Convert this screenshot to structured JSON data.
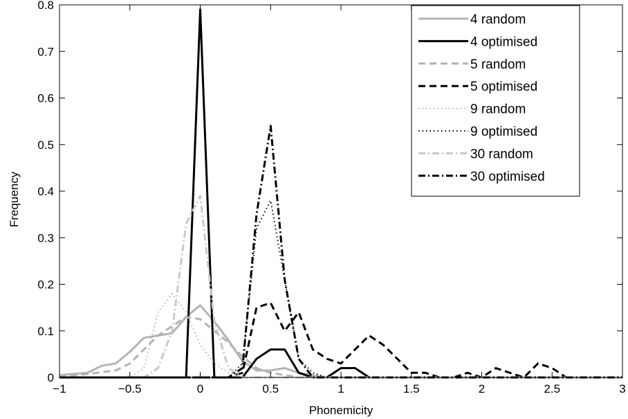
{
  "chart_data": {
    "type": "line",
    "title": "",
    "xlabel": "Phonemicity",
    "ylabel": "Frequency",
    "xlim": [
      -1,
      3
    ],
    "ylim": [
      0,
      0.8
    ],
    "xticks": [
      -1,
      -0.5,
      0,
      0.5,
      1,
      1.5,
      2,
      2.5,
      3
    ],
    "xtick_labels": [
      "−1",
      "−0.5",
      "0",
      "0.5",
      "1",
      "1.5",
      "2",
      "2.5",
      "3"
    ],
    "yticks": [
      0,
      0.1,
      0.2,
      0.3,
      0.4,
      0.5,
      0.6,
      0.7,
      0.8
    ],
    "ytick_labels": [
      "0",
      "0.1",
      "0.2",
      "0.3",
      "0.4",
      "0.5",
      "0.6",
      "0.7",
      "0.8"
    ],
    "grid": false,
    "legend_position": "top-right",
    "series": [
      {
        "name": "4 random",
        "color": "#b3b3b3",
        "dash": "solid",
        "x": [
          -1,
          -0.8,
          -0.7,
          -0.6,
          -0.5,
          -0.4,
          -0.3,
          -0.2,
          -0.1,
          0,
          0.1,
          0.2,
          0.3,
          0.4,
          0.5,
          0.6,
          0.7,
          0.8,
          0.9,
          1,
          1.1,
          1.2,
          1.5,
          2,
          2.5,
          3
        ],
        "y": [
          0.005,
          0.01,
          0.025,
          0.03,
          0.055,
          0.085,
          0.09,
          0.095,
          0.13,
          0.155,
          0.12,
          0.08,
          0.035,
          0.015,
          0.015,
          0.02,
          0.01,
          0.005,
          0,
          0,
          0,
          0,
          0,
          0,
          0,
          0
        ]
      },
      {
        "name": "4 optimised",
        "color": "#000000",
        "dash": "solid",
        "x": [
          -1,
          -0.1,
          0,
          0.1,
          0.3,
          0.4,
          0.5,
          0.6,
          0.7,
          0.8,
          0.9,
          1,
          1.1,
          1.2,
          1.5,
          2,
          2.5,
          3
        ],
        "y": [
          0,
          0,
          0.79,
          0,
          0,
          0.04,
          0.06,
          0.06,
          0.01,
          0,
          0,
          0.02,
          0.02,
          0,
          0,
          0,
          0,
          0
        ]
      },
      {
        "name": "5 random",
        "color": "#b3b3b3",
        "dash": "dashed",
        "x": [
          -1,
          -0.6,
          -0.5,
          -0.4,
          -0.3,
          -0.2,
          -0.1,
          0,
          0.1,
          0.2,
          0.3,
          0.4,
          0.5,
          0.6,
          0.7,
          0.8,
          1,
          2,
          3
        ],
        "y": [
          0,
          0.015,
          0.03,
          0.06,
          0.09,
          0.11,
          0.13,
          0.125,
          0.1,
          0.075,
          0.045,
          0.02,
          0.01,
          0.005,
          0,
          0,
          0,
          0,
          0
        ]
      },
      {
        "name": "5 optimised",
        "color": "#000000",
        "dash": "dashed",
        "x": [
          -1,
          0.2,
          0.3,
          0.4,
          0.5,
          0.6,
          0.7,
          0.8,
          0.9,
          1,
          1.1,
          1.2,
          1.3,
          1.4,
          1.5,
          1.6,
          1.7,
          1.8,
          1.9,
          2,
          2.1,
          2.2,
          2.3,
          2.4,
          2.5,
          2.6,
          2.7,
          3
        ],
        "y": [
          0,
          0,
          0.01,
          0.15,
          0.16,
          0.1,
          0.14,
          0.06,
          0.04,
          0.03,
          0.06,
          0.09,
          0.07,
          0.04,
          0.01,
          0.01,
          0,
          0,
          0.01,
          0,
          0.02,
          0.01,
          0,
          0.03,
          0.02,
          0,
          0,
          0
        ]
      },
      {
        "name": "9 random",
        "color": "#b3b3b3",
        "dash": "dotted",
        "x": [
          -1,
          -0.5,
          -0.4,
          -0.3,
          -0.2,
          -0.1,
          0,
          0.1,
          0.2,
          0.3,
          0.4,
          0.5,
          1,
          3
        ],
        "y": [
          0,
          0,
          0.02,
          0.14,
          0.18,
          0.14,
          0.07,
          0.03,
          0.01,
          0,
          0,
          0,
          0,
          0
        ]
      },
      {
        "name": "9 optimised",
        "color": "#000000",
        "dash": "dotted",
        "x": [
          -1,
          0.2,
          0.3,
          0.4,
          0.5,
          0.6,
          0.7,
          0.8,
          0.9,
          1,
          3
        ],
        "y": [
          0,
          0,
          0.03,
          0.32,
          0.38,
          0.21,
          0.04,
          0.01,
          0,
          0,
          0
        ]
      },
      {
        "name": "30 random",
        "color": "#c8c8c8",
        "dash": "dashdot",
        "x": [
          -1,
          -0.4,
          -0.3,
          -0.2,
          -0.1,
          0,
          0.1,
          0.2,
          0.3,
          0.4,
          1,
          3
        ],
        "y": [
          0,
          0,
          0.02,
          0.1,
          0.33,
          0.39,
          0.12,
          0.02,
          0,
          0,
          0,
          0
        ]
      },
      {
        "name": "30 optimised",
        "color": "#000000",
        "dash": "dashdot",
        "x": [
          -1,
          0.2,
          0.3,
          0.4,
          0.5,
          0.6,
          0.7,
          0.8,
          1,
          3
        ],
        "y": [
          0,
          0,
          0.02,
          0.35,
          0.54,
          0.21,
          0.04,
          0,
          0,
          0
        ]
      }
    ]
  }
}
